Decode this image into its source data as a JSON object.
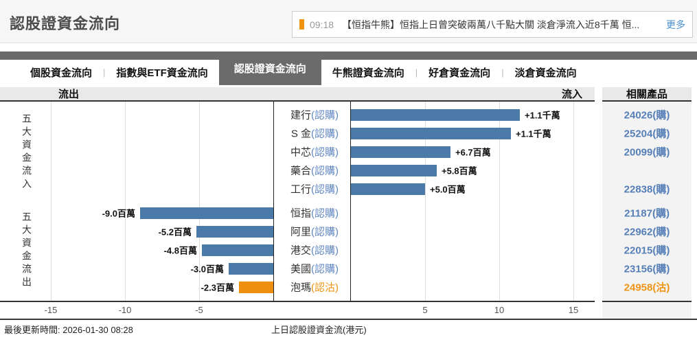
{
  "page": {
    "title": "認股證資金流向"
  },
  "news": {
    "time": "09:18",
    "headline": "【恒指牛熊】恒指上日曾突破兩萬八千點大關 淡倉淨流入近8千萬 恒...",
    "more_label": "更多"
  },
  "tabs": [
    {
      "id": "stock-flow",
      "label": "個股資金流向",
      "active": false
    },
    {
      "id": "index-etf-flow",
      "label": "指數與ETF資金流向",
      "active": false
    },
    {
      "id": "warrant-flow",
      "label": "認股證資金流向",
      "active": true
    },
    {
      "id": "cbbc-flow",
      "label": "牛熊證資金流向",
      "active": false
    },
    {
      "id": "long-flow",
      "label": "好倉資金流向",
      "active": false
    },
    {
      "id": "short-flow",
      "label": "淡倉資金流向",
      "active": false
    }
  ],
  "chart_header": {
    "outflow": "流出",
    "inflow": "流入",
    "related": "相關產品"
  },
  "chart_data": {
    "type": "bar",
    "orientation": "horizontal",
    "title": "上日認股證資金流(港元)",
    "unit": "百萬港元",
    "x_ticks": [
      -15,
      -10,
      -5,
      5,
      10,
      15
    ],
    "xlim_negative": [
      -18.4,
      0
    ],
    "xlim_positive": [
      0,
      16.8
    ],
    "grid": true,
    "groups": [
      {
        "label": "五大資金流入",
        "rows": [
          {
            "name": "建行",
            "kind": "認購",
            "value": 11.4,
            "value_label": "+1.1千萬",
            "product": "24026(購)"
          },
          {
            "name": "S 金",
            "kind": "認購",
            "value": 10.8,
            "value_label": "+1.1千萬",
            "product": "25204(購)"
          },
          {
            "name": "中芯",
            "kind": "認購",
            "value": 6.7,
            "value_label": "+6.7百萬",
            "product": "20099(購)"
          },
          {
            "name": "藥合",
            "kind": "認購",
            "value": 5.8,
            "value_label": "+5.8百萬",
            "product": ""
          },
          {
            "name": "工行",
            "kind": "認購",
            "value": 5.0,
            "value_label": "+5.0百萬",
            "product": "22838(購)"
          }
        ]
      },
      {
        "label": "五大資金流出",
        "rows": [
          {
            "name": "恒指",
            "kind": "認購",
            "value": -9.0,
            "value_label": "-9.0百萬",
            "product": "21187(購)"
          },
          {
            "name": "阿里",
            "kind": "認購",
            "value": -5.2,
            "value_label": "-5.2百萬",
            "product": "22962(購)"
          },
          {
            "name": "港交",
            "kind": "認購",
            "value": -4.8,
            "value_label": "-4.8百萬",
            "product": "22015(購)"
          },
          {
            "name": "美國",
            "kind": "認購",
            "value": -3.0,
            "value_label": "-3.0百萬",
            "product": "23156(購)"
          },
          {
            "name": "泡瑪",
            "kind": "認沽",
            "value": -2.3,
            "value_label": "-2.3百萬",
            "product": "24958(沽)"
          }
        ]
      }
    ]
  },
  "footer": {
    "updated": "最後更新時間: 2026-01-30 08:28",
    "axis_title": "上日認股證資金流(港元)"
  },
  "colors": {
    "bar_call_blue": "#4b79a8",
    "bar_put_orange": "#ef8f10",
    "label_call_blue": "#6288c2",
    "label_put_orange": "#ef9413",
    "product_link_blue": "#567fb7",
    "news_accent_orange": "#f0930f",
    "news_more_blue": "#4a90d2",
    "tab_dark_gray": "#6b6b6b"
  }
}
